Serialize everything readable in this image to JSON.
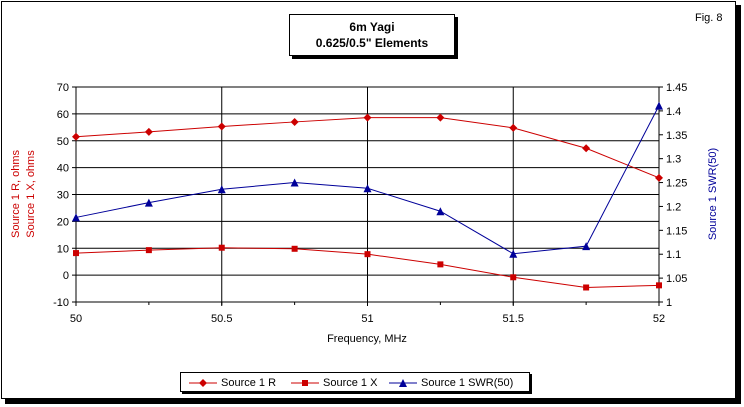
{
  "figure_label": "Fig. 8",
  "chart_data": {
    "type": "line",
    "title": "6m Yagi",
    "subtitle": "0.625/0.5\" Elements",
    "xlabel": "Frequency, MHz",
    "ylabel_left": [
      "Source 1 R,  ohms",
      "Source 1 X,  ohms"
    ],
    "ylabel_right": "Source 1 SWR(50)",
    "x": [
      50,
      50.25,
      50.5,
      50.75,
      51,
      51.25,
      51.5,
      51.75,
      52
    ],
    "x_ticks": [
      "50",
      "50.5",
      "51",
      "51.5",
      "52"
    ],
    "x_tick_values": [
      50,
      50.5,
      51,
      51.5,
      52
    ],
    "xlim": [
      50,
      52
    ],
    "ylim_left": [
      -10,
      70
    ],
    "y_ticks_left": [
      "-10",
      "0",
      "10",
      "20",
      "30",
      "40",
      "50",
      "60",
      "70"
    ],
    "ylim_right": [
      1,
      1.45
    ],
    "y_ticks_right": [
      "1",
      "1.05",
      "1.1",
      "1.15",
      "1.2",
      "1.25",
      "1.3",
      "1.35",
      "1.4",
      "1.45"
    ],
    "grid": "horizontal",
    "series": [
      {
        "name": "Source 1 R",
        "axis": "left",
        "color": "#cc0000",
        "marker": "diamond",
        "values": [
          51.5,
          53.3,
          55.3,
          57.0,
          58.6,
          58.6,
          54.8,
          47.2,
          36.2
        ]
      },
      {
        "name": "Source 1 X",
        "axis": "left",
        "color": "#cc0000",
        "marker": "square",
        "values": [
          8.2,
          9.3,
          10.2,
          9.8,
          7.8,
          4.0,
          -0.8,
          -4.6,
          -3.8
        ]
      },
      {
        "name": "Source 1 SWR(50)",
        "axis": "right",
        "color": "#000099",
        "marker": "triangle",
        "values": [
          1.177,
          1.208,
          1.236,
          1.25,
          1.238,
          1.19,
          1.101,
          1.117,
          1.411
        ]
      }
    ],
    "legend": "bottom"
  },
  "colors": {
    "left_axis_label": "#cc0000",
    "right_axis_label": "#000099"
  }
}
